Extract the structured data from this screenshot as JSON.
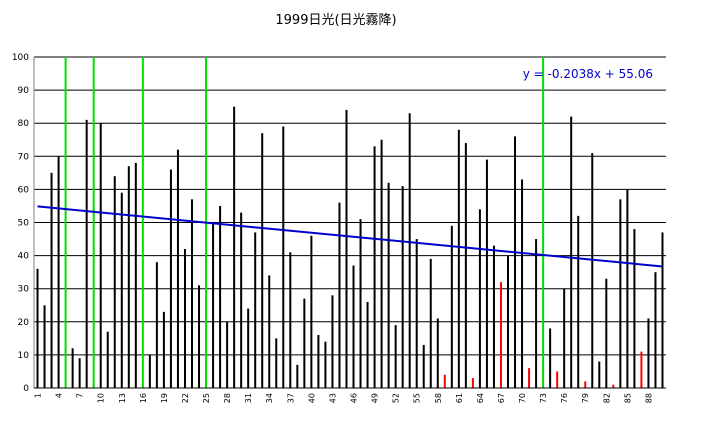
{
  "chart_data": {
    "type": "bar",
    "title": "1999日光(日光霧降)",
    "xlabel": "",
    "ylabel": "",
    "ylim": [
      0,
      100
    ],
    "yticks": [
      0,
      10,
      20,
      30,
      40,
      50,
      60,
      70,
      80,
      90,
      100
    ],
    "grid": true,
    "legend": "none",
    "x": [
      1,
      2,
      3,
      4,
      5,
      6,
      7,
      8,
      9,
      10,
      11,
      12,
      13,
      14,
      15,
      16,
      17,
      18,
      19,
      20,
      21,
      22,
      23,
      24,
      25,
      26,
      27,
      28,
      29,
      30,
      31,
      32,
      33,
      34,
      35,
      36,
      37,
      38,
      39,
      40,
      41,
      42,
      43,
      44,
      45,
      46,
      47,
      48,
      49,
      50,
      51,
      52,
      53,
      54,
      55,
      56,
      57,
      58,
      59,
      60,
      61,
      62,
      63,
      64,
      65,
      66,
      67,
      68,
      69,
      70,
      71,
      72,
      73,
      74,
      75,
      76,
      77,
      78,
      79,
      80,
      81,
      82,
      83,
      84,
      85,
      86,
      87,
      88,
      89,
      90
    ],
    "xtick_labels": [
      "1",
      "4",
      "7",
      "10",
      "13",
      "16",
      "19",
      "22",
      "25",
      "28",
      "31",
      "34",
      "37",
      "40",
      "43",
      "46",
      "49",
      "52",
      "55",
      "58",
      "61",
      "64",
      "67",
      "70",
      "73",
      "76",
      "79",
      "82",
      "85",
      "88"
    ],
    "values": [
      36,
      25,
      65,
      70,
      100,
      12,
      9,
      81,
      100,
      80,
      17,
      64,
      59,
      67,
      68,
      100,
      10,
      38,
      23,
      66,
      72,
      42,
      57,
      31,
      100,
      50,
      55,
      20,
      85,
      53,
      24,
      47,
      77,
      34,
      15,
      79,
      41,
      7,
      27,
      46,
      16,
      14,
      28,
      56,
      84,
      37,
      51,
      26,
      73,
      75,
      62,
      19,
      61,
      83,
      45,
      13,
      39,
      21,
      4,
      49,
      78,
      74,
      3,
      54,
      69,
      43,
      32,
      40,
      76,
      63,
      6,
      45,
      100,
      18,
      5,
      30,
      82,
      52,
      2,
      71,
      8,
      33,
      1,
      57,
      60,
      48,
      11,
      21,
      35,
      47
    ],
    "colors": [
      "#000000",
      "#000000",
      "#000000",
      "#000000",
      "#00dd00",
      "#000000",
      "#000000",
      "#000000",
      "#00dd00",
      "#000000",
      "#000000",
      "#000000",
      "#000000",
      "#000000",
      "#000000",
      "#00dd00",
      "#000000",
      "#000000",
      "#000000",
      "#000000",
      "#000000",
      "#000000",
      "#000000",
      "#000000",
      "#00dd00",
      "#000000",
      "#000000",
      "#000000",
      "#000000",
      "#000000",
      "#000000",
      "#000000",
      "#000000",
      "#000000",
      "#000000",
      "#000000",
      "#000000",
      "#000000",
      "#000000",
      "#000000",
      "#000000",
      "#000000",
      "#000000",
      "#000000",
      "#000000",
      "#000000",
      "#000000",
      "#000000",
      "#000000",
      "#000000",
      "#000000",
      "#000000",
      "#000000",
      "#000000",
      "#000000",
      "#000000",
      "#000000",
      "#000000",
      "#ff0000",
      "#000000",
      "#000000",
      "#000000",
      "#ff0000",
      "#000000",
      "#000000",
      "#000000",
      "#ff0000",
      "#000000",
      "#000000",
      "#000000",
      "#ff0000",
      "#000000",
      "#00dd00",
      "#000000",
      "#ff0000",
      "#000000",
      "#000000",
      "#000000",
      "#ff0000",
      "#000000",
      "#000000",
      "#000000",
      "#ff0000",
      "#000000",
      "#000000",
      "#000000",
      "#ff0000",
      "#000000",
      "#000000",
      "#000000"
    ],
    "trendline": {
      "label": "y = -0.2038x + 55.06",
      "slope": -0.2038,
      "intercept": 55.06,
      "color": "#0000cc"
    }
  }
}
